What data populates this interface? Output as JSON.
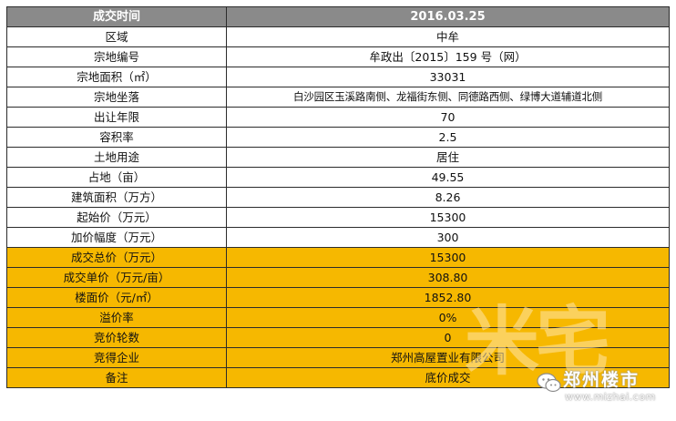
{
  "table": {
    "header": {
      "label": "成交时间",
      "value": "2016.03.25"
    },
    "rows": [
      {
        "label": "区域",
        "value": "中牟",
        "highlight": false
      },
      {
        "label": "宗地编号",
        "value": "牟政出〔2015〕159 号（网）",
        "highlight": false
      },
      {
        "label": "宗地面积（㎡）",
        "value": "33031",
        "highlight": false
      },
      {
        "label": "宗地坐落",
        "value": "白沙园区玉溪路南侧、龙福街东侧、同德路西侧、绿博大道辅道北侧",
        "highlight": false
      },
      {
        "label": "出让年限",
        "value": "70",
        "highlight": false
      },
      {
        "label": "容积率",
        "value": "2.5",
        "highlight": false
      },
      {
        "label": "土地用途",
        "value": "居住",
        "highlight": false
      },
      {
        "label": "占地（亩）",
        "value": "49.55",
        "highlight": false
      },
      {
        "label": "建筑面积（万方）",
        "value": "8.26",
        "highlight": false
      },
      {
        "label": "起始价（万元）",
        "value": "15300",
        "highlight": false
      },
      {
        "label": "加价幅度（万元）",
        "value": "300",
        "highlight": false
      },
      {
        "label": "成交总价（万元）",
        "value": "15300",
        "highlight": true
      },
      {
        "label": "成交单价（万元/亩）",
        "value": "308.80",
        "highlight": true
      },
      {
        "label": "楼面价（元/㎡）",
        "value": "1852.80",
        "highlight": true
      },
      {
        "label": "溢价率",
        "value": "0%",
        "highlight": true
      },
      {
        "label": "竞价轮数",
        "value": "0",
        "highlight": true
      },
      {
        "label": "竞得企业",
        "value": "郑州高屋置业有限公司",
        "highlight": true
      },
      {
        "label": "备注",
        "value": "底价成交",
        "highlight": true
      }
    ]
  },
  "colors": {
    "header_bg": "#8a8a8a",
    "highlight_bg": "#f6b800",
    "border": "#2b2b2b"
  },
  "watermark": {
    "big_text": "米宅",
    "account_name": "郑州楼市",
    "url": "www.mizhai.com"
  }
}
